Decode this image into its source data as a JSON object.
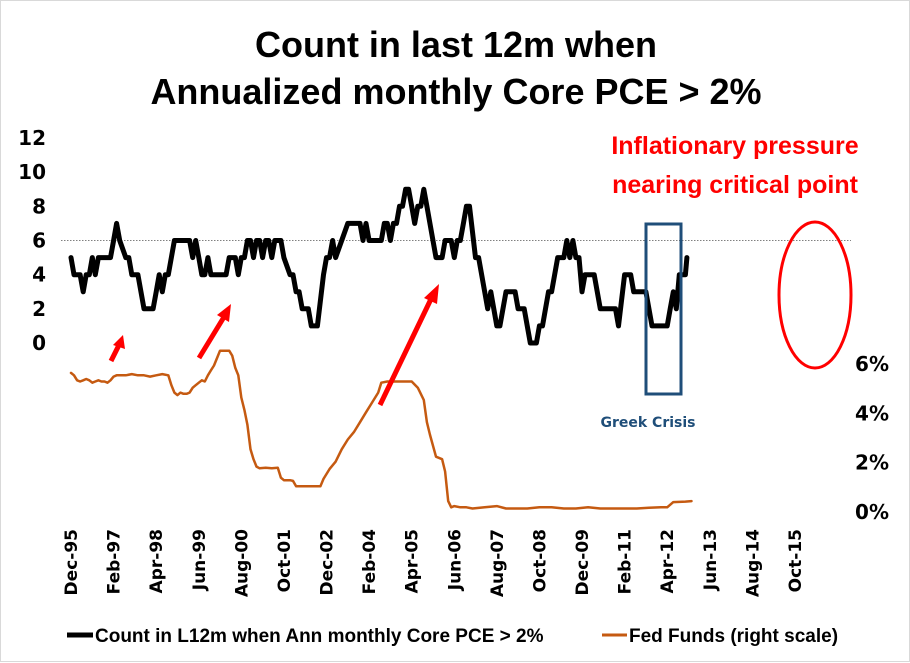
{
  "chart_data": {
    "type": "line",
    "title": [
      "Count in last 12m when",
      "Annualized monthly Core PCE > 2%"
    ],
    "xlabel": "",
    "ylabel_left": "",
    "ylabel_right": "",
    "x_tick_labels": [
      "Dec-95",
      "Feb-97",
      "Apr-98",
      "Jun-99",
      "Aug-00",
      "Oct-01",
      "Dec-02",
      "Feb-04",
      "Apr-05",
      "Jun-06",
      "Aug-07",
      "Oct-08",
      "Dec-09",
      "Feb-11",
      "Apr-12",
      "Jun-13",
      "Aug-14",
      "Oct-15"
    ],
    "x_range": [
      "Dec-95",
      "Jun-16"
    ],
    "y_left": {
      "ticks": [
        "0",
        "2",
        "4",
        "6",
        "8",
        "10",
        "12"
      ],
      "range": [
        0,
        12
      ]
    },
    "y_right": {
      "ticks": [
        "0%",
        "2%",
        "4%",
        "6%"
      ],
      "range": [
        0,
        6
      ]
    },
    "reference_line": {
      "axis": "left",
      "value": 6,
      "style": "dotted",
      "color": "#808080"
    },
    "grid": false,
    "legend_position": "bottom",
    "series": [
      {
        "name": "Count in L12m when Ann monthly Core PCE > 2%",
        "axis": "left",
        "color": "#000000",
        "points": [
          [
            0,
            5
          ],
          [
            1,
            4
          ],
          [
            3,
            4
          ],
          [
            4,
            3
          ],
          [
            5,
            4
          ],
          [
            6,
            4
          ],
          [
            7,
            5
          ],
          [
            8,
            4
          ],
          [
            9,
            5
          ],
          [
            11,
            5
          ],
          [
            13,
            5
          ],
          [
            14,
            6
          ],
          [
            15,
            7
          ],
          [
            16,
            6
          ],
          [
            18,
            5
          ],
          [
            19,
            5
          ],
          [
            20,
            4
          ],
          [
            22,
            4
          ],
          [
            24,
            2
          ],
          [
            27,
            2
          ],
          [
            28,
            3
          ],
          [
            29,
            4
          ],
          [
            30,
            3
          ],
          [
            31,
            4
          ],
          [
            32,
            4
          ],
          [
            34,
            6
          ],
          [
            39,
            6
          ],
          [
            40,
            5
          ],
          [
            41,
            6
          ],
          [
            42,
            5
          ],
          [
            43,
            4
          ],
          [
            44,
            4
          ],
          [
            45,
            5
          ],
          [
            46,
            4
          ],
          [
            51,
            4
          ],
          [
            52,
            5
          ],
          [
            54,
            5
          ],
          [
            55,
            4
          ],
          [
            56,
            5
          ],
          [
            57,
            5
          ],
          [
            58,
            6
          ],
          [
            59,
            6
          ],
          [
            60,
            5
          ],
          [
            61,
            6
          ],
          [
            62,
            6
          ],
          [
            63,
            5
          ],
          [
            64,
            6
          ],
          [
            65,
            6
          ],
          [
            66,
            5
          ],
          [
            67,
            6
          ],
          [
            69,
            6
          ],
          [
            70,
            5
          ],
          [
            72,
            4
          ],
          [
            73,
            4
          ],
          [
            74,
            3
          ],
          [
            75,
            3
          ],
          [
            76,
            2
          ],
          [
            78,
            2
          ],
          [
            79,
            1
          ],
          [
            81,
            1
          ],
          [
            83,
            4
          ],
          [
            84,
            5
          ],
          [
            85,
            5
          ],
          [
            86,
            6
          ],
          [
            87,
            5
          ],
          [
            89,
            6
          ],
          [
            91,
            7
          ],
          [
            95,
            7
          ],
          [
            96,
            6
          ],
          [
            97,
            7
          ],
          [
            98,
            6
          ],
          [
            102,
            6
          ],
          [
            103,
            7
          ],
          [
            104,
            7
          ],
          [
            105,
            6
          ],
          [
            106,
            7
          ],
          [
            107,
            7
          ],
          [
            108,
            8
          ],
          [
            109,
            8
          ],
          [
            110,
            9
          ],
          [
            111,
            9
          ],
          [
            112,
            8
          ],
          [
            113,
            7
          ],
          [
            114,
            8
          ],
          [
            115,
            8
          ],
          [
            116,
            9
          ],
          [
            117,
            8
          ],
          [
            120,
            5
          ],
          [
            122,
            5
          ],
          [
            123,
            6
          ],
          [
            125,
            6
          ],
          [
            126,
            5
          ],
          [
            127,
            6
          ],
          [
            128,
            6
          ],
          [
            129,
            7
          ],
          [
            130,
            8
          ],
          [
            131,
            8
          ],
          [
            133,
            5
          ],
          [
            134,
            5
          ],
          [
            136,
            3
          ],
          [
            137,
            2
          ],
          [
            138,
            3
          ],
          [
            140,
            1
          ],
          [
            141,
            1
          ],
          [
            143,
            3
          ],
          [
            146,
            3
          ],
          [
            147,
            2
          ],
          [
            149,
            2
          ],
          [
            151,
            0
          ],
          [
            153,
            0
          ],
          [
            154,
            1
          ],
          [
            155,
            1
          ],
          [
            156,
            2
          ],
          [
            157,
            3
          ],
          [
            158,
            3
          ],
          [
            160,
            5
          ],
          [
            162,
            5
          ],
          [
            163,
            6
          ],
          [
            164,
            5
          ],
          [
            165,
            6
          ],
          [
            166,
            5
          ],
          [
            167,
            5
          ],
          [
            168,
            3
          ],
          [
            169,
            4
          ],
          [
            172,
            4
          ],
          [
            174,
            2
          ],
          [
            179,
            2
          ],
          [
            180,
            1
          ],
          [
            182,
            4
          ],
          [
            184,
            4
          ],
          [
            185,
            3
          ],
          [
            189,
            3
          ],
          [
            191,
            1
          ],
          [
            196,
            1
          ],
          [
            197,
            2
          ],
          [
            198,
            3
          ],
          [
            199,
            2
          ],
          [
            200,
            4
          ],
          [
            202,
            4
          ],
          [
            202.5,
            5
          ]
        ]
      },
      {
        "name": "Fed Funds (right scale)",
        "axis": "right",
        "color": "#c55a11",
        "points": [
          [
            0,
            5.6
          ],
          [
            1,
            5.5
          ],
          [
            2,
            5.3
          ],
          [
            3,
            5.25
          ],
          [
            4,
            5.3
          ],
          [
            5,
            5.35
          ],
          [
            6,
            5.3
          ],
          [
            7,
            5.2
          ],
          [
            8,
            5.25
          ],
          [
            9,
            5.3
          ],
          [
            10,
            5.25
          ],
          [
            11,
            5.25
          ],
          [
            12,
            5.2
          ],
          [
            13,
            5.3
          ],
          [
            14,
            5.45
          ],
          [
            15,
            5.5
          ],
          [
            16,
            5.5
          ],
          [
            18,
            5.5
          ],
          [
            20,
            5.55
          ],
          [
            22,
            5.5
          ],
          [
            24,
            5.5
          ],
          [
            26,
            5.45
          ],
          [
            28,
            5.5
          ],
          [
            30,
            5.55
          ],
          [
            32,
            5.5
          ],
          [
            33,
            5.1
          ],
          [
            34,
            4.8
          ],
          [
            35,
            4.7
          ],
          [
            36,
            4.8
          ],
          [
            37,
            4.75
          ],
          [
            38,
            4.75
          ],
          [
            39,
            4.8
          ],
          [
            40,
            5.0
          ],
          [
            41,
            5.1
          ],
          [
            42,
            5.2
          ],
          [
            43,
            5.3
          ],
          [
            44,
            5.25
          ],
          [
            45,
            5.5
          ],
          [
            46,
            5.7
          ],
          [
            47,
            5.9
          ],
          [
            48,
            6.2
          ],
          [
            49,
            6.5
          ],
          [
            50,
            6.5
          ],
          [
            51,
            6.5
          ],
          [
            52,
            6.5
          ],
          [
            53,
            6.3
          ],
          [
            54,
            5.8
          ],
          [
            55,
            5.5
          ],
          [
            56,
            4.6
          ],
          [
            57,
            4.1
          ],
          [
            58,
            3.5
          ],
          [
            59,
            2.5
          ],
          [
            60,
            2.1
          ],
          [
            61,
            1.8
          ],
          [
            62,
            1.73
          ],
          [
            64,
            1.75
          ],
          [
            66,
            1.73
          ],
          [
            68,
            1.75
          ],
          [
            69,
            1.35
          ],
          [
            70,
            1.25
          ],
          [
            72,
            1.25
          ],
          [
            73,
            1.22
          ],
          [
            74,
            1.0
          ],
          [
            76,
            1.0
          ],
          [
            80,
            1.0
          ],
          [
            82,
            1.0
          ],
          [
            83,
            1.3
          ],
          [
            85,
            1.7
          ],
          [
            87,
            2.0
          ],
          [
            89,
            2.5
          ],
          [
            91,
            2.9
          ],
          [
            93,
            3.2
          ],
          [
            95,
            3.6
          ],
          [
            97,
            4.0
          ],
          [
            99,
            4.4
          ],
          [
            101,
            4.8
          ],
          [
            102,
            5.2
          ],
          [
            104,
            5.25
          ],
          [
            108,
            5.25
          ],
          [
            112,
            5.25
          ],
          [
            114,
            5.0
          ],
          [
            116,
            4.5
          ],
          [
            117,
            3.6
          ],
          [
            118,
            3.1
          ],
          [
            120,
            2.2
          ],
          [
            122,
            2.1
          ],
          [
            123,
            1.6
          ],
          [
            124,
            0.4
          ],
          [
            125,
            0.15
          ],
          [
            126,
            0.2
          ],
          [
            128,
            0.15
          ],
          [
            130,
            0.15
          ],
          [
            132,
            0.1
          ],
          [
            136,
            0.15
          ],
          [
            140,
            0.2
          ],
          [
            143,
            0.1
          ],
          [
            146,
            0.1
          ],
          [
            150,
            0.1
          ],
          [
            154,
            0.15
          ],
          [
            158,
            0.15
          ],
          [
            162,
            0.1
          ],
          [
            166,
            0.1
          ],
          [
            170,
            0.15
          ],
          [
            174,
            0.1
          ],
          [
            178,
            0.1
          ],
          [
            182,
            0.1
          ],
          [
            186,
            0.1
          ],
          [
            190,
            0.13
          ],
          [
            194,
            0.15
          ],
          [
            196,
            0.15
          ],
          [
            198,
            0.36
          ],
          [
            200,
            0.37
          ],
          [
            202,
            0.38
          ],
          [
            204,
            0.4
          ]
        ]
      }
    ],
    "x_index_note": "point x = months since Dec-95"
  },
  "annotations": {
    "inflation_text": [
      "Inflationary pressure",
      "nearing critical point"
    ],
    "greek_crisis_label": "Greek Crisis",
    "arrow_color": "#ff0000",
    "box_color": "#1f4e79",
    "ellipse_color": "#ff0000"
  },
  "legend": {
    "items": [
      {
        "label": "Count in L12m when Ann monthly Core PCE > 2%",
        "color": "#000000"
      },
      {
        "label": "Fed Funds (right scale)",
        "color": "#c55a11"
      }
    ]
  }
}
